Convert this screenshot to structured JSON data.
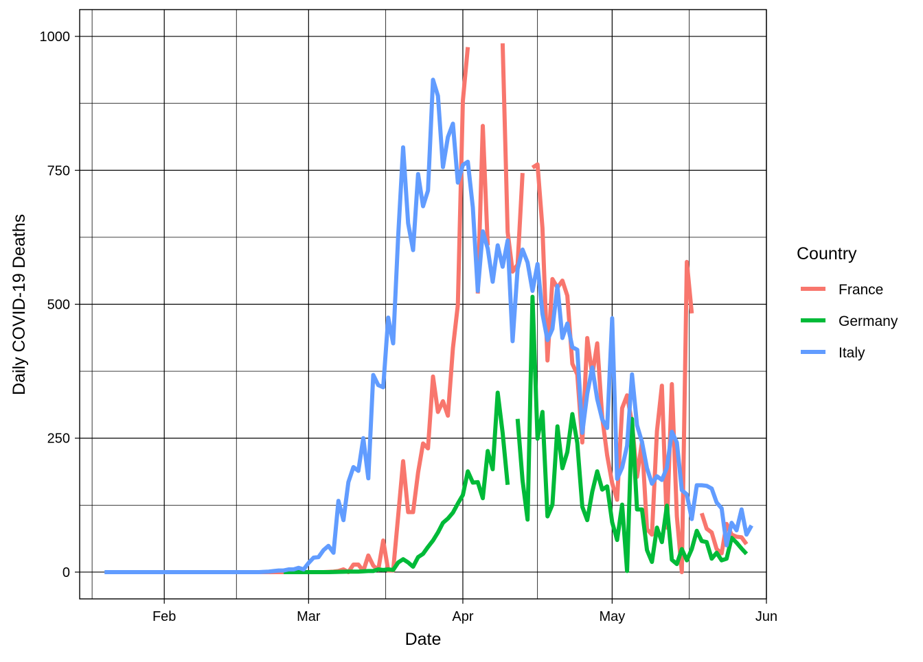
{
  "chart_data": {
    "type": "line",
    "xlabel": "Date",
    "ylabel": "Daily COVID-19 Deaths",
    "x_ticks": [
      "2020-02-01",
      "2020-03-01",
      "2020-04-01",
      "2020-05-01",
      "2020-06-01"
    ],
    "x_tick_labels": [
      "Feb",
      "Mar",
      "Apr",
      "May",
      "Jun"
    ],
    "x_range": [
      "2020-01-15",
      "2020-06-01"
    ],
    "y_ticks": [
      0,
      250,
      500,
      750,
      1000
    ],
    "y_tick_labels": [
      "0",
      "250",
      "500",
      "750",
      "1000"
    ],
    "ylim": [
      -50,
      1050
    ],
    "grid": true,
    "legend": {
      "title": "Country",
      "position": "right",
      "entries": [
        "France",
        "Germany",
        "Italy"
      ]
    },
    "series": [
      {
        "name": "France",
        "color": "#F8766D",
        "points": [
          [
            "2020-02-20",
            0
          ],
          [
            "2020-02-24",
            0
          ],
          [
            "2020-02-28",
            0
          ],
          [
            "2020-03-02",
            0
          ],
          [
            "2020-03-04",
            0
          ],
          [
            "2020-03-06",
            1
          ],
          [
            "2020-03-07",
            2
          ],
          [
            "2020-03-08",
            5
          ],
          [
            "2020-03-09",
            0
          ],
          [
            "2020-03-10",
            14
          ],
          [
            "2020-03-11",
            14
          ],
          [
            "2020-03-12",
            2
          ],
          [
            "2020-03-13",
            31
          ],
          [
            "2020-03-14",
            12
          ],
          [
            "2020-03-15",
            4
          ],
          [
            "2020-03-16",
            59
          ],
          [
            "2020-03-17",
            3
          ],
          [
            "2020-03-18",
            3
          ],
          [
            "2020-03-19",
            105
          ],
          [
            "2020-03-20",
            207
          ],
          [
            "2020-03-21",
            112
          ],
          [
            "2020-03-22",
            112
          ],
          [
            "2020-03-23",
            186
          ],
          [
            "2020-03-24",
            240
          ],
          [
            "2020-03-25",
            231
          ],
          [
            "2020-03-26",
            365
          ],
          [
            "2020-03-27",
            299
          ],
          [
            "2020-03-28",
            319
          ],
          [
            "2020-03-29",
            292
          ],
          [
            "2020-03-30",
            418
          ],
          [
            "2020-03-31",
            499
          ],
          [
            "2020-04-01",
            880
          ],
          [
            "2020-04-02",
            980
          ],
          null,
          [
            "2020-04-04",
            520
          ],
          [
            "2020-04-05",
            833
          ],
          [
            "2020-04-06",
            610
          ],
          null,
          [
            "2020-04-09",
            987
          ],
          [
            "2020-04-10",
            635
          ],
          [
            "2020-04-11",
            561
          ],
          [
            "2020-04-12",
            574
          ],
          [
            "2020-04-13",
            745
          ],
          null,
          [
            "2020-04-15",
            755
          ],
          [
            "2020-04-16",
            761
          ],
          [
            "2020-04-17",
            642
          ],
          [
            "2020-04-18",
            395
          ],
          [
            "2020-04-19",
            547
          ],
          [
            "2020-04-20",
            531
          ],
          [
            "2020-04-21",
            544
          ],
          [
            "2020-04-22",
            516
          ],
          [
            "2020-04-23",
            389
          ],
          [
            "2020-04-24",
            369
          ],
          [
            "2020-04-25",
            242
          ],
          [
            "2020-04-26",
            437
          ],
          [
            "2020-04-27",
            367
          ],
          [
            "2020-04-28",
            427
          ],
          [
            "2020-04-29",
            289
          ],
          [
            "2020-04-30",
            218
          ],
          [
            "2020-05-01",
            166
          ],
          [
            "2020-05-02",
            135
          ],
          [
            "2020-05-03",
            306
          ],
          [
            "2020-05-04",
            330
          ],
          [
            "2020-05-05",
            278
          ],
          [
            "2020-05-06",
            178
          ],
          [
            "2020-05-07",
            243
          ],
          [
            "2020-05-08",
            80
          ],
          [
            "2020-05-09",
            70
          ],
          [
            "2020-05-10",
            263
          ],
          [
            "2020-05-11",
            348
          ],
          [
            "2020-05-12",
            83
          ],
          [
            "2020-05-13",
            351
          ],
          [
            "2020-05-14",
            104
          ],
          [
            "2020-05-15",
            0
          ],
          [
            "2020-05-16",
            579
          ],
          [
            "2020-05-17",
            483
          ],
          null,
          [
            "2020-05-19",
            110
          ],
          [
            "2020-05-20",
            81
          ],
          [
            "2020-05-21",
            74
          ],
          [
            "2020-05-22",
            43
          ],
          [
            "2020-05-23",
            35
          ],
          [
            "2020-05-24",
            90
          ],
          [
            "2020-05-25",
            70
          ],
          [
            "2020-05-26",
            66
          ],
          [
            "2020-05-27",
            65
          ],
          [
            "2020-05-28",
            52
          ]
        ]
      },
      {
        "name": "Germany",
        "color": "#00BA38",
        "points": [
          [
            "2020-02-25",
            0
          ],
          [
            "2020-03-01",
            0
          ],
          [
            "2020-03-05",
            0
          ],
          [
            "2020-03-09",
            1
          ],
          [
            "2020-03-11",
            1
          ],
          [
            "2020-03-13",
            2
          ],
          [
            "2020-03-14",
            2
          ],
          [
            "2020-03-15",
            5
          ],
          [
            "2020-03-16",
            4
          ],
          [
            "2020-03-17",
            5
          ],
          [
            "2020-03-18",
            4
          ],
          [
            "2020-03-19",
            18
          ],
          [
            "2020-03-20",
            24
          ],
          [
            "2020-03-21",
            18
          ],
          [
            "2020-03-22",
            10
          ],
          [
            "2020-03-23",
            28
          ],
          [
            "2020-03-24",
            34
          ],
          [
            "2020-03-25",
            47
          ],
          [
            "2020-03-26",
            59
          ],
          [
            "2020-03-27",
            74
          ],
          [
            "2020-03-28",
            92
          ],
          [
            "2020-03-29",
            100
          ],
          [
            "2020-03-30",
            111
          ],
          [
            "2020-03-31",
            128
          ],
          [
            "2020-04-01",
            144
          ],
          [
            "2020-04-02",
            188
          ],
          [
            "2020-04-03",
            167
          ],
          [
            "2020-04-04",
            168
          ],
          [
            "2020-04-05",
            138
          ],
          [
            "2020-04-06",
            226
          ],
          [
            "2020-04-07",
            192
          ],
          [
            "2020-04-08",
            335
          ],
          [
            "2020-04-09",
            260
          ],
          [
            "2020-04-10",
            163
          ],
          null,
          [
            "2020-04-12",
            286
          ],
          [
            "2020-04-13",
            171
          ],
          [
            "2020-04-14",
            98
          ],
          [
            "2020-04-15",
            514
          ],
          [
            "2020-04-16",
            249
          ],
          [
            "2020-04-17",
            299
          ],
          [
            "2020-04-18",
            104
          ],
          [
            "2020-04-19",
            126
          ],
          [
            "2020-04-20",
            272
          ],
          [
            "2020-04-21",
            194
          ],
          [
            "2020-04-22",
            224
          ],
          [
            "2020-04-23",
            295
          ],
          [
            "2020-04-24",
            241
          ],
          [
            "2020-04-25",
            122
          ],
          [
            "2020-04-26",
            97
          ],
          [
            "2020-04-27",
            150
          ],
          [
            "2020-04-28",
            188
          ],
          [
            "2020-04-29",
            154
          ],
          [
            "2020-04-30",
            160
          ],
          [
            "2020-05-01",
            93
          ],
          [
            "2020-05-02",
            60
          ],
          [
            "2020-05-03",
            126
          ],
          [
            "2020-05-04",
            2
          ],
          [
            "2020-05-05",
            286
          ],
          [
            "2020-05-06",
            117
          ],
          [
            "2020-05-07",
            117
          ],
          [
            "2020-05-08",
            41
          ],
          [
            "2020-05-09",
            19
          ],
          [
            "2020-05-10",
            83
          ],
          [
            "2020-05-11",
            56
          ],
          [
            "2020-05-12",
            124
          ],
          [
            "2020-05-13",
            23
          ],
          [
            "2020-05-14",
            15
          ],
          [
            "2020-05-15",
            43
          ],
          [
            "2020-05-16",
            22
          ],
          [
            "2020-05-17",
            43
          ],
          [
            "2020-05-18",
            77
          ],
          [
            "2020-05-19",
            58
          ],
          [
            "2020-05-20",
            56
          ],
          [
            "2020-05-21",
            25
          ],
          [
            "2020-05-22",
            36
          ],
          [
            "2020-05-23",
            22
          ],
          [
            "2020-05-24",
            25
          ],
          [
            "2020-05-25",
            64
          ],
          [
            "2020-05-26",
            55
          ],
          [
            "2020-05-27",
            44
          ],
          [
            "2020-05-28",
            34
          ]
        ]
      },
      {
        "name": "Italy",
        "color": "#619CFF",
        "points": [
          [
            "2020-01-20",
            0
          ],
          [
            "2020-02-01",
            0
          ],
          [
            "2020-02-10",
            0
          ],
          [
            "2020-02-20",
            0
          ],
          [
            "2020-02-22",
            1
          ],
          [
            "2020-02-23",
            2
          ],
          [
            "2020-02-24",
            3
          ],
          [
            "2020-02-25",
            3
          ],
          [
            "2020-02-26",
            5
          ],
          [
            "2020-02-27",
            5
          ],
          [
            "2020-02-28",
            8
          ],
          [
            "2020-02-29",
            5
          ],
          [
            "2020-03-01",
            17
          ],
          [
            "2020-03-02",
            27
          ],
          [
            "2020-03-03",
            28
          ],
          [
            "2020-03-04",
            41
          ],
          [
            "2020-03-05",
            49
          ],
          [
            "2020-03-06",
            36
          ],
          [
            "2020-03-07",
            133
          ],
          [
            "2020-03-08",
            97
          ],
          [
            "2020-03-09",
            168
          ],
          [
            "2020-03-10",
            196
          ],
          [
            "2020-03-11",
            189
          ],
          [
            "2020-03-12",
            250
          ],
          [
            "2020-03-13",
            175
          ],
          [
            "2020-03-14",
            368
          ],
          [
            "2020-03-15",
            349
          ],
          [
            "2020-03-16",
            345
          ],
          [
            "2020-03-17",
            475
          ],
          [
            "2020-03-18",
            427
          ],
          [
            "2020-03-19",
            627
          ],
          [
            "2020-03-20",
            793
          ],
          [
            "2020-03-21",
            651
          ],
          [
            "2020-03-22",
            601
          ],
          [
            "2020-03-23",
            743
          ],
          [
            "2020-03-24",
            683
          ],
          [
            "2020-03-25",
            712
          ],
          [
            "2020-03-26",
            919
          ],
          [
            "2020-03-27",
            889
          ],
          [
            "2020-03-28",
            756
          ],
          [
            "2020-03-29",
            812
          ],
          [
            "2020-03-30",
            837
          ],
          [
            "2020-03-31",
            727
          ],
          [
            "2020-04-01",
            760
          ],
          [
            "2020-04-02",
            766
          ],
          [
            "2020-04-03",
            681
          ],
          [
            "2020-04-04",
            525
          ],
          [
            "2020-04-05",
            636
          ],
          [
            "2020-04-06",
            604
          ],
          [
            "2020-04-07",
            542
          ],
          [
            "2020-04-08",
            610
          ],
          [
            "2020-04-09",
            570
          ],
          [
            "2020-04-10",
            619
          ],
          [
            "2020-04-11",
            431
          ],
          [
            "2020-04-12",
            566
          ],
          [
            "2020-04-13",
            602
          ],
          [
            "2020-04-14",
            578
          ],
          [
            "2020-04-15",
            525
          ],
          [
            "2020-04-16",
            575
          ],
          [
            "2020-04-17",
            482
          ],
          [
            "2020-04-18",
            433
          ],
          [
            "2020-04-19",
            454
          ],
          [
            "2020-04-20",
            534
          ],
          [
            "2020-04-21",
            437
          ],
          [
            "2020-04-22",
            464
          ],
          [
            "2020-04-23",
            420
          ],
          [
            "2020-04-24",
            415
          ],
          [
            "2020-04-25",
            260
          ],
          [
            "2020-04-26",
            333
          ],
          [
            "2020-04-27",
            382
          ],
          [
            "2020-04-28",
            323
          ],
          [
            "2020-04-29",
            285
          ],
          [
            "2020-04-30",
            269
          ],
          [
            "2020-05-01",
            474
          ],
          [
            "2020-05-02",
            174
          ],
          [
            "2020-05-03",
            195
          ],
          [
            "2020-05-04",
            236
          ],
          [
            "2020-05-05",
            369
          ],
          [
            "2020-05-06",
            274
          ],
          [
            "2020-05-07",
            243
          ],
          [
            "2020-05-08",
            194
          ],
          [
            "2020-05-09",
            165
          ],
          [
            "2020-05-10",
            179
          ],
          [
            "2020-05-11",
            172
          ],
          [
            "2020-05-12",
            195
          ],
          [
            "2020-05-13",
            262
          ],
          [
            "2020-05-14",
            242
          ],
          [
            "2020-05-15",
            153
          ],
          [
            "2020-05-16",
            145
          ],
          [
            "2020-05-17",
            99
          ],
          [
            "2020-05-18",
            162
          ],
          [
            "2020-05-19",
            162
          ],
          [
            "2020-05-20",
            161
          ],
          [
            "2020-05-21",
            156
          ],
          [
            "2020-05-22",
            130
          ],
          [
            "2020-05-23",
            119
          ],
          [
            "2020-05-24",
            50
          ],
          [
            "2020-05-25",
            92
          ],
          [
            "2020-05-26",
            78
          ],
          [
            "2020-05-27",
            117
          ],
          [
            "2020-05-28",
            70
          ],
          [
            "2020-05-29",
            87
          ]
        ]
      }
    ]
  }
}
